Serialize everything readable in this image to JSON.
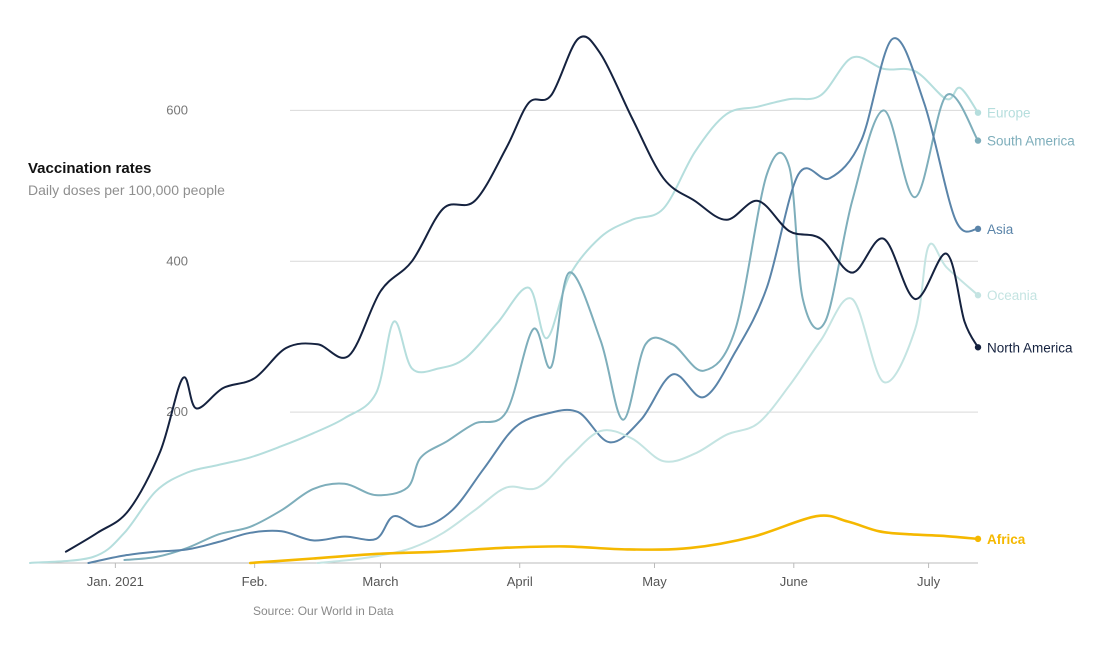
{
  "chart_data": {
    "type": "line",
    "title": "Vaccination rates",
    "subtitle": "Daily doses per 100,000 people",
    "source": "Source: Our World in Data",
    "ylim": [
      0,
      700
    ],
    "yticks": [
      200,
      400,
      600
    ],
    "xticks": [
      {
        "date": "2021-01-01",
        "label": "Jan. 2021"
      },
      {
        "date": "2021-02-01",
        "label": "Feb."
      },
      {
        "date": "2021-03-01",
        "label": "March"
      },
      {
        "date": "2021-04-01",
        "label": "April"
      },
      {
        "date": "2021-05-01",
        "label": "May"
      },
      {
        "date": "2021-06-01",
        "label": "June"
      },
      {
        "date": "2021-07-01",
        "label": "July"
      }
    ],
    "grid": true,
    "legend": "labels at line ends",
    "series": [
      {
        "name": "Europe",
        "color": "#b5dedd",
        "points": [
          [
            "2020-12-13",
            0
          ],
          [
            "2020-12-27",
            8
          ],
          [
            "2021-01-03",
            40
          ],
          [
            "2021-01-10",
            95
          ],
          [
            "2021-01-17",
            120
          ],
          [
            "2021-01-24",
            130
          ],
          [
            "2021-01-31",
            140
          ],
          [
            "2021-02-07",
            155
          ],
          [
            "2021-02-14",
            172
          ],
          [
            "2021-02-21",
            192
          ],
          [
            "2021-02-28",
            225
          ],
          [
            "2021-03-04",
            320
          ],
          [
            "2021-03-08",
            258
          ],
          [
            "2021-03-14",
            258
          ],
          [
            "2021-03-20",
            272
          ],
          [
            "2021-03-27",
            318
          ],
          [
            "2021-04-03",
            365
          ],
          [
            "2021-04-07",
            298
          ],
          [
            "2021-04-12",
            380
          ],
          [
            "2021-04-19",
            432
          ],
          [
            "2021-04-26",
            455
          ],
          [
            "2021-05-03",
            470
          ],
          [
            "2021-05-10",
            545
          ],
          [
            "2021-05-17",
            595
          ],
          [
            "2021-05-24",
            605
          ],
          [
            "2021-05-31",
            615
          ],
          [
            "2021-06-07",
            620
          ],
          [
            "2021-06-14",
            670
          ],
          [
            "2021-06-21",
            655
          ],
          [
            "2021-06-28",
            652
          ],
          [
            "2021-07-05",
            615
          ],
          [
            "2021-07-08",
            630
          ],
          [
            "2021-07-12",
            597
          ]
        ]
      },
      {
        "name": "South America",
        "color": "#7eaebb",
        "points": [
          [
            "2021-01-03",
            4
          ],
          [
            "2021-01-10",
            8
          ],
          [
            "2021-01-17",
            20
          ],
          [
            "2021-01-24",
            38
          ],
          [
            "2021-01-31",
            48
          ],
          [
            "2021-02-07",
            70
          ],
          [
            "2021-02-14",
            98
          ],
          [
            "2021-02-21",
            105
          ],
          [
            "2021-02-28",
            90
          ],
          [
            "2021-03-07",
            100
          ],
          [
            "2021-03-10",
            140
          ],
          [
            "2021-03-16",
            162
          ],
          [
            "2021-03-22",
            185
          ],
          [
            "2021-03-29",
            200
          ],
          [
            "2021-04-04",
            310
          ],
          [
            "2021-04-08",
            260
          ],
          [
            "2021-04-12",
            385
          ],
          [
            "2021-04-19",
            295
          ],
          [
            "2021-04-24",
            190
          ],
          [
            "2021-04-29",
            290
          ],
          [
            "2021-05-05",
            290
          ],
          [
            "2021-05-12",
            255
          ],
          [
            "2021-05-19",
            310
          ],
          [
            "2021-05-26",
            515
          ],
          [
            "2021-05-31",
            525
          ],
          [
            "2021-06-03",
            350
          ],
          [
            "2021-06-08",
            320
          ],
          [
            "2021-06-14",
            480
          ],
          [
            "2021-06-21",
            600
          ],
          [
            "2021-06-28",
            485
          ],
          [
            "2021-07-05",
            620
          ],
          [
            "2021-07-12",
            560
          ]
        ]
      },
      {
        "name": "Asia",
        "color": "#5a84a9",
        "points": [
          [
            "2020-12-26",
            0
          ],
          [
            "2021-01-03",
            10
          ],
          [
            "2021-01-10",
            15
          ],
          [
            "2021-01-17",
            18
          ],
          [
            "2021-01-24",
            28
          ],
          [
            "2021-01-31",
            40
          ],
          [
            "2021-02-07",
            42
          ],
          [
            "2021-02-14",
            30
          ],
          [
            "2021-02-21",
            35
          ],
          [
            "2021-02-28",
            32
          ],
          [
            "2021-03-04",
            62
          ],
          [
            "2021-03-10",
            48
          ],
          [
            "2021-03-17",
            70
          ],
          [
            "2021-03-24",
            125
          ],
          [
            "2021-03-31",
            180
          ],
          [
            "2021-04-07",
            198
          ],
          [
            "2021-04-14",
            200
          ],
          [
            "2021-04-21",
            160
          ],
          [
            "2021-04-28",
            190
          ],
          [
            "2021-05-05",
            250
          ],
          [
            "2021-05-12",
            220
          ],
          [
            "2021-05-19",
            280
          ],
          [
            "2021-05-26",
            365
          ],
          [
            "2021-06-02",
            515
          ],
          [
            "2021-06-09",
            510
          ],
          [
            "2021-06-16",
            560
          ],
          [
            "2021-06-23",
            695
          ],
          [
            "2021-06-30",
            610
          ],
          [
            "2021-07-07",
            455
          ],
          [
            "2021-07-12",
            443
          ]
        ]
      },
      {
        "name": "Oceania",
        "color": "#c4e4e2",
        "points": [
          [
            "2021-02-15",
            0
          ],
          [
            "2021-02-22",
            4
          ],
          [
            "2021-03-01",
            10
          ],
          [
            "2021-03-08",
            20
          ],
          [
            "2021-03-15",
            40
          ],
          [
            "2021-03-22",
            70
          ],
          [
            "2021-03-29",
            100
          ],
          [
            "2021-04-05",
            100
          ],
          [
            "2021-04-12",
            140
          ],
          [
            "2021-04-19",
            175
          ],
          [
            "2021-04-26",
            165
          ],
          [
            "2021-05-03",
            135
          ],
          [
            "2021-05-10",
            145
          ],
          [
            "2021-05-17",
            170
          ],
          [
            "2021-05-24",
            185
          ],
          [
            "2021-05-31",
            235
          ],
          [
            "2021-06-07",
            295
          ],
          [
            "2021-06-14",
            350
          ],
          [
            "2021-06-21",
            240
          ],
          [
            "2021-06-28",
            310
          ],
          [
            "2021-07-01",
            420
          ],
          [
            "2021-07-05",
            392
          ],
          [
            "2021-07-12",
            355
          ]
        ]
      },
      {
        "name": "North America",
        "color": "#15223f",
        "points": [
          [
            "2020-12-21",
            15
          ],
          [
            "2020-12-28",
            40
          ],
          [
            "2021-01-04",
            70
          ],
          [
            "2021-01-11",
            148
          ],
          [
            "2021-01-16",
            245
          ],
          [
            "2021-01-19",
            205
          ],
          [
            "2021-01-25",
            232
          ],
          [
            "2021-02-01",
            245
          ],
          [
            "2021-02-08",
            285
          ],
          [
            "2021-02-15",
            290
          ],
          [
            "2021-02-22",
            275
          ],
          [
            "2021-03-01",
            360
          ],
          [
            "2021-03-08",
            400
          ],
          [
            "2021-03-15",
            470
          ],
          [
            "2021-03-22",
            480
          ],
          [
            "2021-03-29",
            550
          ],
          [
            "2021-04-03",
            610
          ],
          [
            "2021-04-08",
            620
          ],
          [
            "2021-04-14",
            695
          ],
          [
            "2021-04-19",
            675
          ],
          [
            "2021-04-26",
            590
          ],
          [
            "2021-05-03",
            510
          ],
          [
            "2021-05-10",
            480
          ],
          [
            "2021-05-17",
            455
          ],
          [
            "2021-05-24",
            480
          ],
          [
            "2021-05-31",
            440
          ],
          [
            "2021-06-07",
            430
          ],
          [
            "2021-06-14",
            385
          ],
          [
            "2021-06-21",
            430
          ],
          [
            "2021-06-28",
            350
          ],
          [
            "2021-07-05",
            410
          ],
          [
            "2021-07-09",
            320
          ],
          [
            "2021-07-12",
            286
          ]
        ]
      },
      {
        "name": "Africa",
        "color": "#f5b800",
        "bold": true,
        "points": [
          [
            "2021-01-31",
            0
          ],
          [
            "2021-02-14",
            6
          ],
          [
            "2021-02-28",
            12
          ],
          [
            "2021-03-14",
            15
          ],
          [
            "2021-03-28",
            20
          ],
          [
            "2021-04-11",
            22
          ],
          [
            "2021-04-25",
            18
          ],
          [
            "2021-05-09",
            20
          ],
          [
            "2021-05-23",
            35
          ],
          [
            "2021-06-06",
            62
          ],
          [
            "2021-06-13",
            55
          ],
          [
            "2021-06-20",
            42
          ],
          [
            "2021-06-27",
            38
          ],
          [
            "2021-07-04",
            36
          ],
          [
            "2021-07-12",
            32
          ]
        ]
      }
    ]
  }
}
